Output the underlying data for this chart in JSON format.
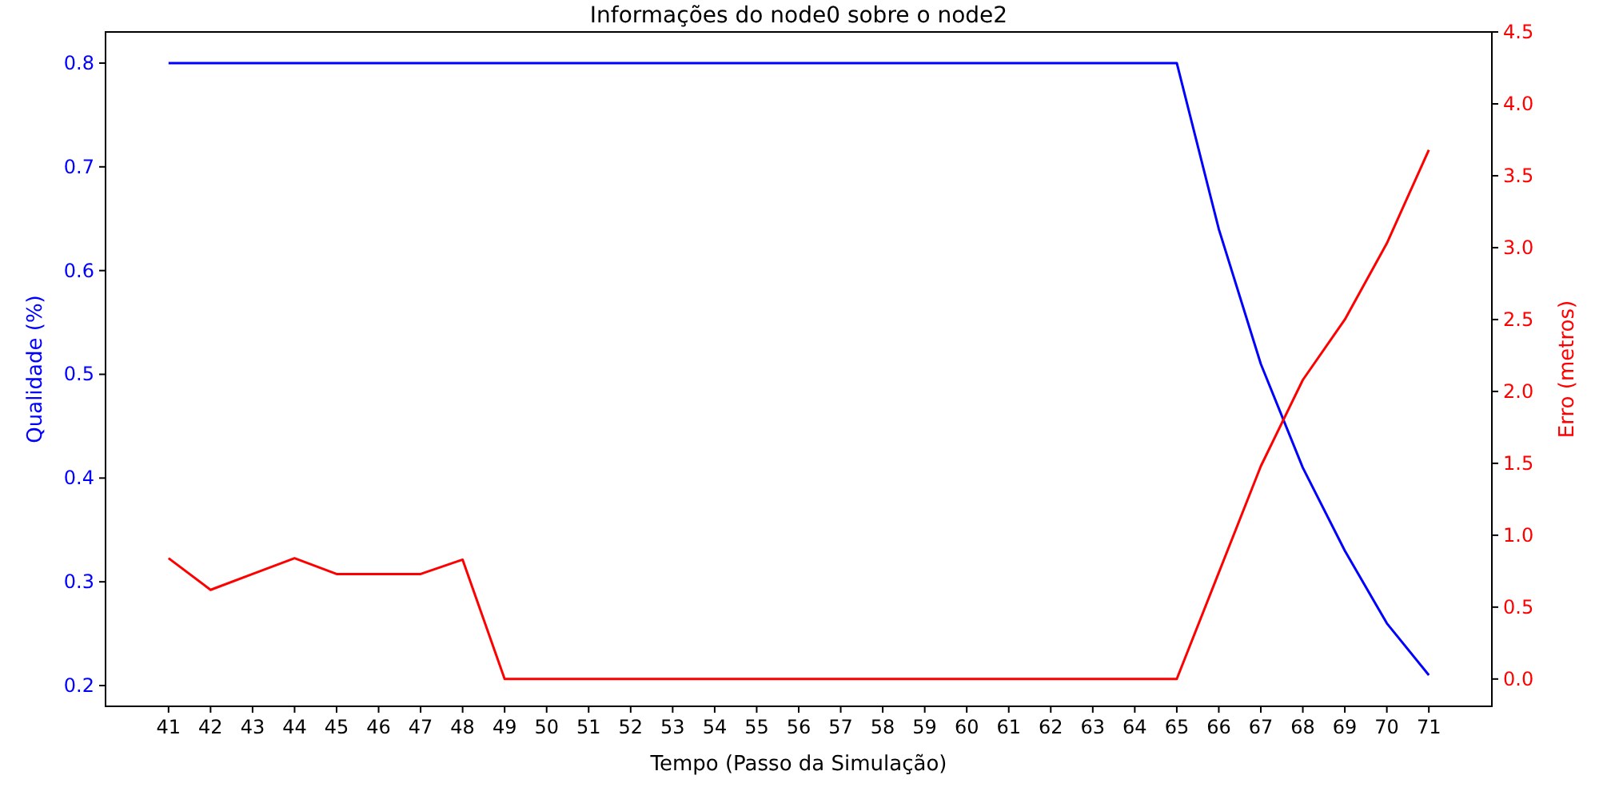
{
  "chart_data": {
    "type": "line",
    "title": "Informações do node0 sobre o node2",
    "xlabel": "Tempo (Passo da Simulação)",
    "ylabel": "Qualidade (%)",
    "y2label": "Erro (metros)",
    "x": [
      41,
      42,
      43,
      44,
      45,
      46,
      47,
      48,
      49,
      50,
      51,
      52,
      53,
      54,
      55,
      56,
      57,
      58,
      59,
      60,
      61,
      62,
      63,
      64,
      65,
      66,
      67,
      68,
      69,
      70,
      71
    ],
    "xlim": [
      39.5,
      72.5
    ],
    "xticks": [
      41,
      42,
      43,
      44,
      45,
      46,
      47,
      48,
      49,
      50,
      51,
      52,
      53,
      54,
      55,
      56,
      57,
      58,
      59,
      60,
      61,
      62,
      63,
      64,
      65,
      66,
      67,
      68,
      69,
      70,
      71
    ],
    "ylim": [
      0.18,
      0.83
    ],
    "yticks": [
      {
        "value": 0.2,
        "label": "0.2"
      },
      {
        "value": 0.3,
        "label": "0.3"
      },
      {
        "value": 0.4,
        "label": "0.4"
      },
      {
        "value": 0.5,
        "label": "0.5"
      },
      {
        "value": 0.6,
        "label": "0.6"
      },
      {
        "value": 0.7,
        "label": "0.7"
      },
      {
        "value": 0.8,
        "label": "0.8"
      }
    ],
    "y2lim": [
      -0.19,
      4.5
    ],
    "y2ticks": [
      {
        "value": 0,
        "label": "0.0"
      },
      {
        "value": 0.5,
        "label": "0.5"
      },
      {
        "value": 1,
        "label": "1.0"
      },
      {
        "value": 1.5,
        "label": "1.5"
      },
      {
        "value": 2,
        "label": "2.0"
      },
      {
        "value": 2.5,
        "label": "2.5"
      },
      {
        "value": 3,
        "label": "3.0"
      },
      {
        "value": 3.5,
        "label": "3.5"
      },
      {
        "value": 4,
        "label": "4.0"
      },
      {
        "value": 4.5,
        "label": "4.5"
      }
    ],
    "series": [
      {
        "color": "#0000ff",
        "values": [
          0.8,
          0.8,
          0.8,
          0.8,
          0.8,
          0.8,
          0.8,
          0.8,
          0.8,
          0.8,
          0.8,
          0.8,
          0.8,
          0.8,
          0.8,
          0.8,
          0.8,
          0.8,
          0.8,
          0.8,
          0.8,
          0.8,
          0.8,
          0.8,
          0.8,
          0.64,
          0.51,
          0.41,
          0.33,
          0.26,
          0.21
        ]
      },
      {
        "color": "#ff0000",
        "axis": "y2",
        "values": [
          0.84,
          0.62,
          0.73,
          0.84,
          0.73,
          0.73,
          0.73,
          0.83,
          0,
          0,
          0,
          0,
          0,
          0,
          0,
          0,
          0,
          0,
          0,
          0,
          0,
          0,
          0,
          0,
          0,
          0.74,
          1.48,
          2.08,
          2.5,
          3.03,
          3.68
        ]
      }
    ]
  }
}
